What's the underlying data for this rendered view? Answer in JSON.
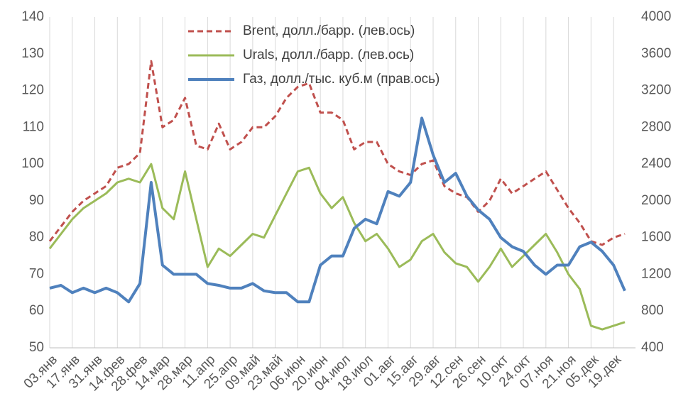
{
  "chart_data": {
    "type": "line",
    "categories": [
      "03.янв",
      null,
      "17.янв",
      null,
      "31.янв",
      null,
      "14.фев",
      null,
      "28.фев",
      null,
      "14.мар",
      null,
      "28.мар",
      null,
      "11.апр",
      null,
      "25.апр",
      null,
      "09.май",
      null,
      "23.май",
      null,
      "06.июн",
      null,
      "20.июн",
      null,
      "04.июл",
      null,
      "18.июл",
      null,
      "01.авг",
      null,
      "15.авг",
      null,
      "29.авг",
      null,
      "12.сен",
      null,
      "26.сен",
      null,
      "10.окт",
      null,
      "24.окт",
      null,
      "07.ноя",
      null,
      "21.ноя",
      null,
      "05.дек",
      null,
      "19.дек",
      null
    ],
    "series": [
      {
        "name": "Brent, долл./барр. (лев.ось)",
        "color": "#c0504d",
        "dashed": true,
        "values": [
          79,
          83,
          87,
          90,
          92,
          94,
          99,
          100,
          103,
          128,
          110,
          112,
          118,
          105,
          104,
          111,
          104,
          106,
          110,
          110,
          113,
          118,
          121,
          122,
          114,
          114,
          112,
          104,
          106,
          106,
          100,
          98,
          97,
          100,
          101,
          94,
          92,
          91,
          87,
          90,
          96,
          92,
          94,
          96,
          98,
          93,
          88,
          84,
          79,
          78,
          80,
          81
        ]
      },
      {
        "name": "Urals, долл./барр. (лев.ось)",
        "color": "#9bbb59",
        "dashed": false,
        "values": [
          77,
          81,
          85,
          88,
          90,
          92,
          95,
          96,
          95,
          100,
          88,
          85,
          98,
          85,
          72,
          77,
          75,
          78,
          81,
          80,
          86,
          92,
          98,
          99,
          92,
          88,
          91,
          84,
          79,
          81,
          77,
          72,
          74,
          79,
          81,
          76,
          73,
          72,
          68,
          72,
          77,
          72,
          75,
          78,
          81,
          76,
          70,
          66,
          56,
          55,
          56,
          57
        ]
      },
      {
        "name": "Газ, долл./тыс. куб.м (прав.ось)",
        "color": "#4f81bd",
        "dashed": false,
        "axis": "y2",
        "values": [
          1050,
          1080,
          1000,
          1050,
          1000,
          1050,
          1000,
          900,
          1100,
          2200,
          1300,
          1200,
          1200,
          1200,
          1100,
          1080,
          1050,
          1050,
          1100,
          1020,
          1000,
          1000,
          900,
          900,
          1300,
          1400,
          1400,
          1700,
          1800,
          1750,
          2100,
          2050,
          2200,
          2900,
          2500,
          2200,
          2300,
          2050,
          1900,
          1800,
          1600,
          1500,
          1450,
          1300,
          1200,
          1300,
          1300,
          1500,
          1550,
          1450,
          1300,
          1020
        ]
      }
    ],
    "ylim": [
      50,
      140
    ],
    "yticks": [
      50,
      60,
      70,
      80,
      90,
      100,
      110,
      120,
      130,
      140
    ],
    "y2lim": [
      400,
      4000
    ],
    "y2ticks": [
      400,
      800,
      1200,
      1600,
      2000,
      2400,
      2800,
      3200,
      3600,
      4000
    ],
    "grid": true,
    "legend": "top"
  }
}
